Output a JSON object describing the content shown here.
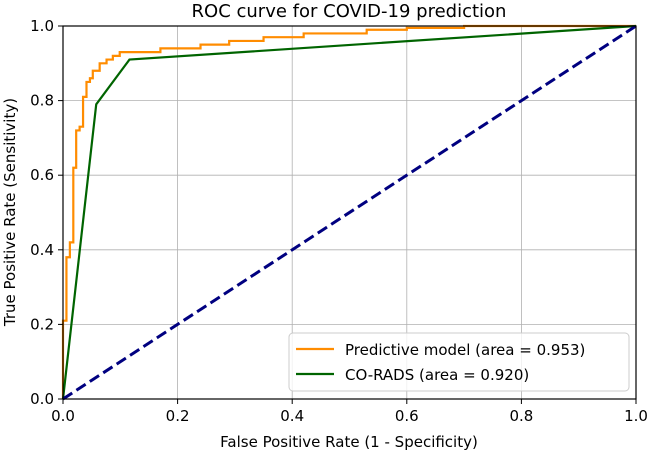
{
  "chart_data": {
    "type": "line",
    "title": "ROC curve for COVID-19 prediction",
    "xlabel": "False Positive Rate (1 - Specificity)",
    "ylabel": "True Positive Rate (Sensitivity)",
    "xlim": [
      0.0,
      1.0
    ],
    "ylim": [
      0.0,
      1.0
    ],
    "grid": true,
    "legend_position": "lower-right",
    "xticks": [
      "0.0",
      "0.2",
      "0.4",
      "0.6",
      "0.8",
      "1.0"
    ],
    "yticks": [
      "0.0",
      "0.2",
      "0.4",
      "0.6",
      "0.8",
      "1.0"
    ],
    "series": [
      {
        "name": "Predictive model (area = 0.953)",
        "color": "#ff8c00",
        "style": "solid",
        "x": [
          0.0,
          0.0,
          0.006,
          0.006,
          0.012,
          0.012,
          0.018,
          0.018,
          0.023,
          0.023,
          0.029,
          0.029,
          0.035,
          0.035,
          0.041,
          0.041,
          0.047,
          0.047,
          0.052,
          0.052,
          0.064,
          0.064,
          0.076,
          0.076,
          0.087,
          0.087,
          0.099,
          0.099,
          0.11,
          0.11,
          0.17,
          0.17,
          0.24,
          0.24,
          0.29,
          0.29,
          0.35,
          0.35,
          0.42,
          0.42,
          0.47,
          0.47,
          0.53,
          0.53,
          0.6,
          0.6,
          0.7,
          0.7,
          1.0
        ],
        "y": [
          0.0,
          0.21,
          0.21,
          0.38,
          0.38,
          0.42,
          0.42,
          0.62,
          0.62,
          0.72,
          0.72,
          0.73,
          0.73,
          0.81,
          0.81,
          0.85,
          0.85,
          0.86,
          0.86,
          0.88,
          0.88,
          0.9,
          0.9,
          0.91,
          0.91,
          0.92,
          0.92,
          0.93,
          0.93,
          0.93,
          0.93,
          0.94,
          0.94,
          0.95,
          0.95,
          0.96,
          0.96,
          0.97,
          0.97,
          0.98,
          0.98,
          0.98,
          0.98,
          0.99,
          0.99,
          0.995,
          0.995,
          1.0,
          1.0
        ]
      },
      {
        "name": "CO-RADS (area = 0.920)",
        "color": "#006400",
        "style": "solid",
        "x": [
          0.0,
          0.058,
          0.116,
          1.0
        ],
        "y": [
          0.0,
          0.79,
          0.91,
          1.0
        ]
      },
      {
        "name": "",
        "color": "#000080",
        "style": "dashed",
        "x": [
          0.0,
          1.0
        ],
        "y": [
          0.0,
          1.0
        ]
      }
    ]
  }
}
